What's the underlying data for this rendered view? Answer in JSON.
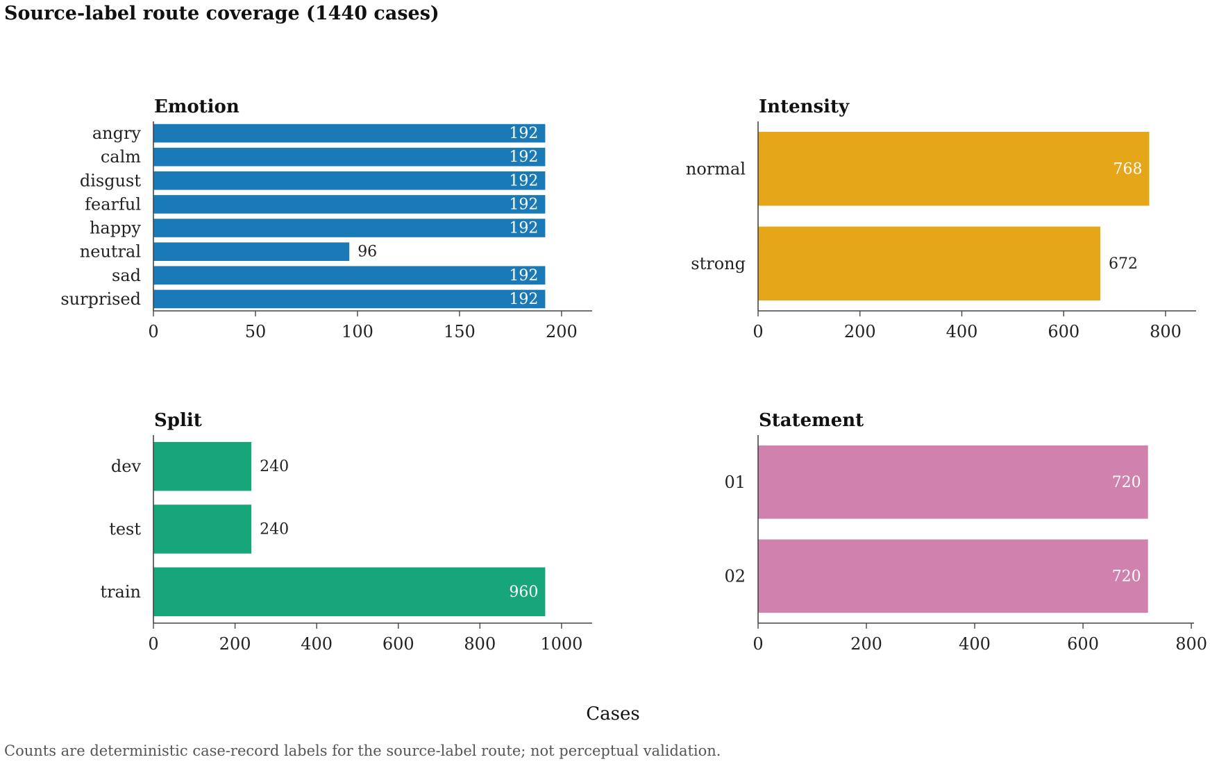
{
  "title": "Source-label route coverage (1440 cases)",
  "xlabel": "Cases",
  "footnote": "Counts are deterministic case-record labels for the source-label route; not perceptual validation.",
  "chart_data": [
    {
      "type": "bar",
      "orientation": "horizontal",
      "title": "Emotion",
      "categories": [
        "angry",
        "calm",
        "disgust",
        "fearful",
        "happy",
        "neutral",
        "sad",
        "surprised"
      ],
      "values": [
        192,
        192,
        192,
        192,
        192,
        96,
        192,
        192
      ],
      "xlim": [
        0,
        215
      ],
      "xticks": [
        0,
        50,
        100,
        150,
        200
      ],
      "color": "#1a7ab8",
      "grid": false
    },
    {
      "type": "bar",
      "orientation": "horizontal",
      "title": "Intensity",
      "categories": [
        "normal",
        "strong"
      ],
      "values": [
        768,
        672
      ],
      "xlim": [
        0,
        860
      ],
      "xticks": [
        0,
        200,
        400,
        600,
        800
      ],
      "color": "#e6a619",
      "grid": false
    },
    {
      "type": "bar",
      "orientation": "horizontal",
      "title": "Split",
      "categories": [
        "dev",
        "test",
        "train"
      ],
      "values": [
        240,
        240,
        960
      ],
      "xlim": [
        0,
        1075
      ],
      "xticks": [
        0,
        200,
        400,
        600,
        800,
        1000
      ],
      "color": "#17a57a",
      "grid": false
    },
    {
      "type": "bar",
      "orientation": "horizontal",
      "title": "Statement",
      "categories": [
        "01",
        "02"
      ],
      "values": [
        720,
        720
      ],
      "xlim": [
        0,
        805
      ],
      "xticks": [
        0,
        200,
        400,
        600,
        800
      ],
      "color": "#d181ad",
      "grid": false
    }
  ]
}
